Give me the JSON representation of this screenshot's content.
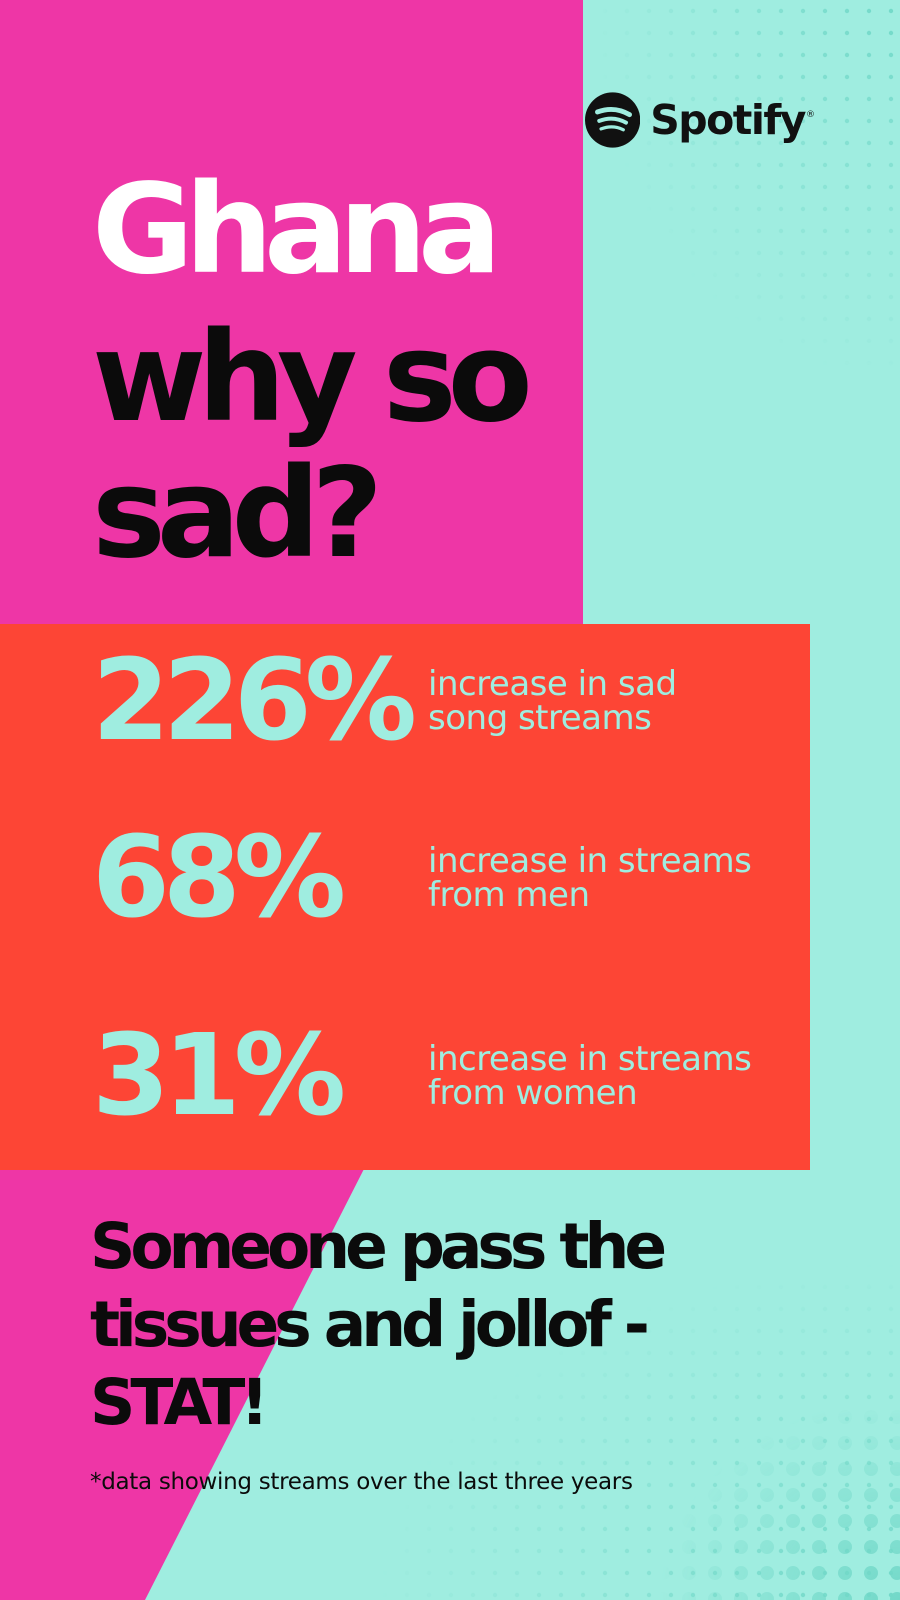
{
  "brand": {
    "name": "Spotify",
    "logo_icon": "spotify-logo-icon",
    "registered_mark": "®"
  },
  "headline": {
    "country": "Ghana",
    "question": "why so sad?"
  },
  "stats": [
    {
      "value": "226%",
      "label": "increase in sad song streams"
    },
    {
      "value": "68%",
      "label": "increase in streams from men"
    },
    {
      "value": "31%",
      "label": "increase in streams from women"
    }
  ],
  "tagline": "Someone pass the tissues and jollof - STAT!",
  "footnote": "*data showing streams over the last three years",
  "colors": {
    "pink": "#ee36a6",
    "red": "#fd4535",
    "mint": "#9fede0",
    "dots": "#6fd6c6",
    "text_dark": "#0b0b0b",
    "text_light": "#ffffff"
  }
}
